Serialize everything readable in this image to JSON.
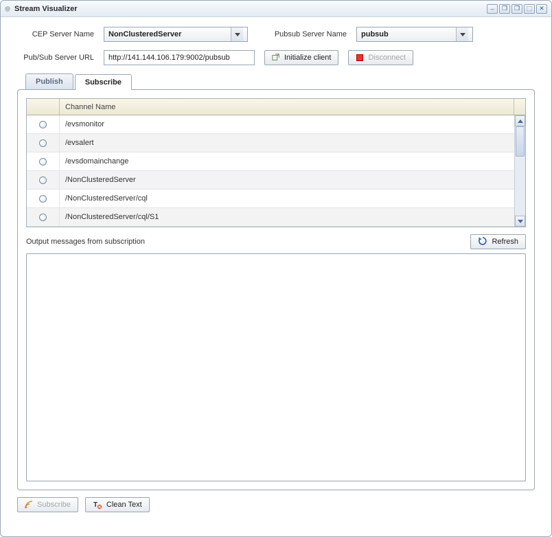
{
  "window": {
    "title": "Stream Visualizer",
    "colors": {
      "titlebar_start": "#f8fafd",
      "titlebar_end": "#e4ebf3",
      "border": "#9aa8b8"
    }
  },
  "form": {
    "cep_label": "CEP Server Name",
    "cep_value": "NonClusteredServer",
    "pubsub_label": "Pubsub Server Name",
    "pubsub_value": "pubsub",
    "url_label": "Pub/Sub Server URL",
    "url_value": "http://141.144.106.179:9002/pubsub",
    "init_button": "Initialize client",
    "disconnect_button": "Disconnect"
  },
  "tabs": {
    "publish": "Publish",
    "subscribe": "Subscribe",
    "active": "subscribe"
  },
  "table": {
    "header": "Channel Name",
    "rows": [
      "/evsmonitor",
      "/evsalert",
      "/evsdomainchange",
      "/NonClusteredServer",
      "/NonClusteredServer/cql",
      "/NonClusteredServer/cql/S1"
    ]
  },
  "output": {
    "label": "Output messages from subscription",
    "refresh": "Refresh"
  },
  "footer": {
    "subscribe": "Subscribe",
    "clean": "Clean Text"
  }
}
